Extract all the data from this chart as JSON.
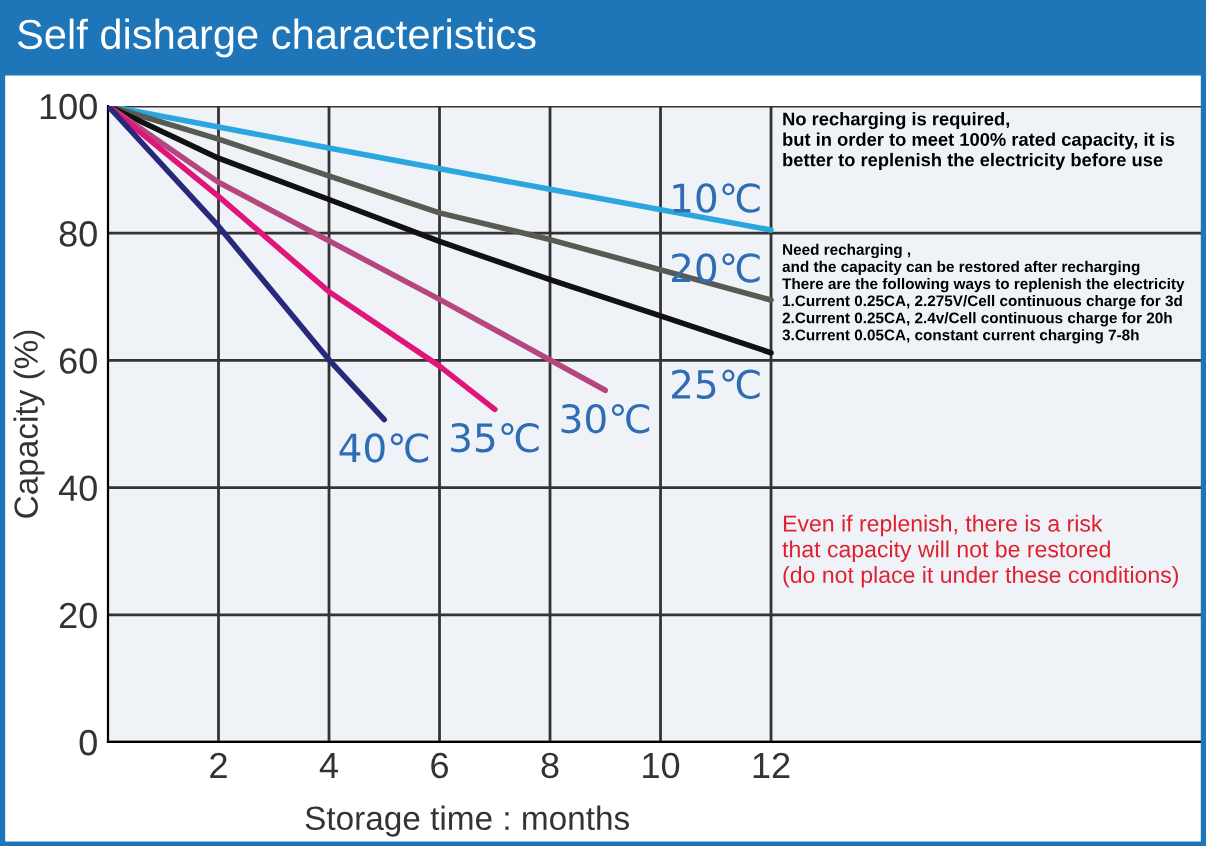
{
  "chart_data": {
    "type": "line",
    "title": "Self disharge characteristics",
    "xlabel": "Storage time : months",
    "ylabel": "Capacity (%)",
    "xlim": [
      0,
      19.8
    ],
    "xticks": [
      2,
      4,
      6,
      8,
      10,
      12
    ],
    "ylim": [
      0,
      100
    ],
    "yticks": [
      0,
      20,
      40,
      60,
      80,
      100
    ],
    "grid": true,
    "legend": false,
    "series": [
      {
        "name": "10℃",
        "color": "#2ba6de",
        "x": [
          0,
          4,
          8,
          12
        ],
        "values": [
          100,
          93.4,
          86.9,
          80.5
        ]
      },
      {
        "name": "20℃",
        "color": "#5a5a55",
        "x": [
          0,
          2,
          6,
          8,
          12
        ],
        "values": [
          100,
          94.8,
          83.2,
          79,
          69.5
        ]
      },
      {
        "name": "25℃",
        "color": "#111111",
        "x": [
          0,
          2,
          4,
          6,
          8,
          10,
          12
        ],
        "values": [
          100,
          91.8,
          85.3,
          78.7,
          72.7,
          67,
          61.2
        ]
      },
      {
        "name": "30℃",
        "color": "#b5467f",
        "x": [
          0,
          2,
          6,
          9
        ],
        "values": [
          100,
          88,
          69.6,
          55.3
        ]
      },
      {
        "name": "35℃",
        "color": "#e0157a",
        "x": [
          0,
          2,
          4,
          6,
          7
        ],
        "values": [
          100,
          85.8,
          70.8,
          59.1,
          52.3
        ]
      },
      {
        "name": "40℃",
        "color": "#27297a",
        "x": [
          0,
          2,
          4,
          5
        ],
        "values": [
          100,
          81.1,
          60.1,
          50.7
        ]
      }
    ],
    "annotations": [
      "No recharging is required,\nbut in order to meet 100% rated capacity, it is\nbetter to replenish the electricity before use",
      "Need recharging ,\nand the capacity can be restored after recharging\nThere are the following ways to replenish the electricity\n1.Current 0.25CA, 2.275V/Cell continuous charge for 3d\n2.Current 0.25CA, 2.4v/Cell continuous charge for 20h\n3.Current 0.05CA, constant current charging 7-8h",
      "Even if replenish, there is a risk\nthat capacity will not be restored\n(do not place it under these conditions)"
    ]
  }
}
